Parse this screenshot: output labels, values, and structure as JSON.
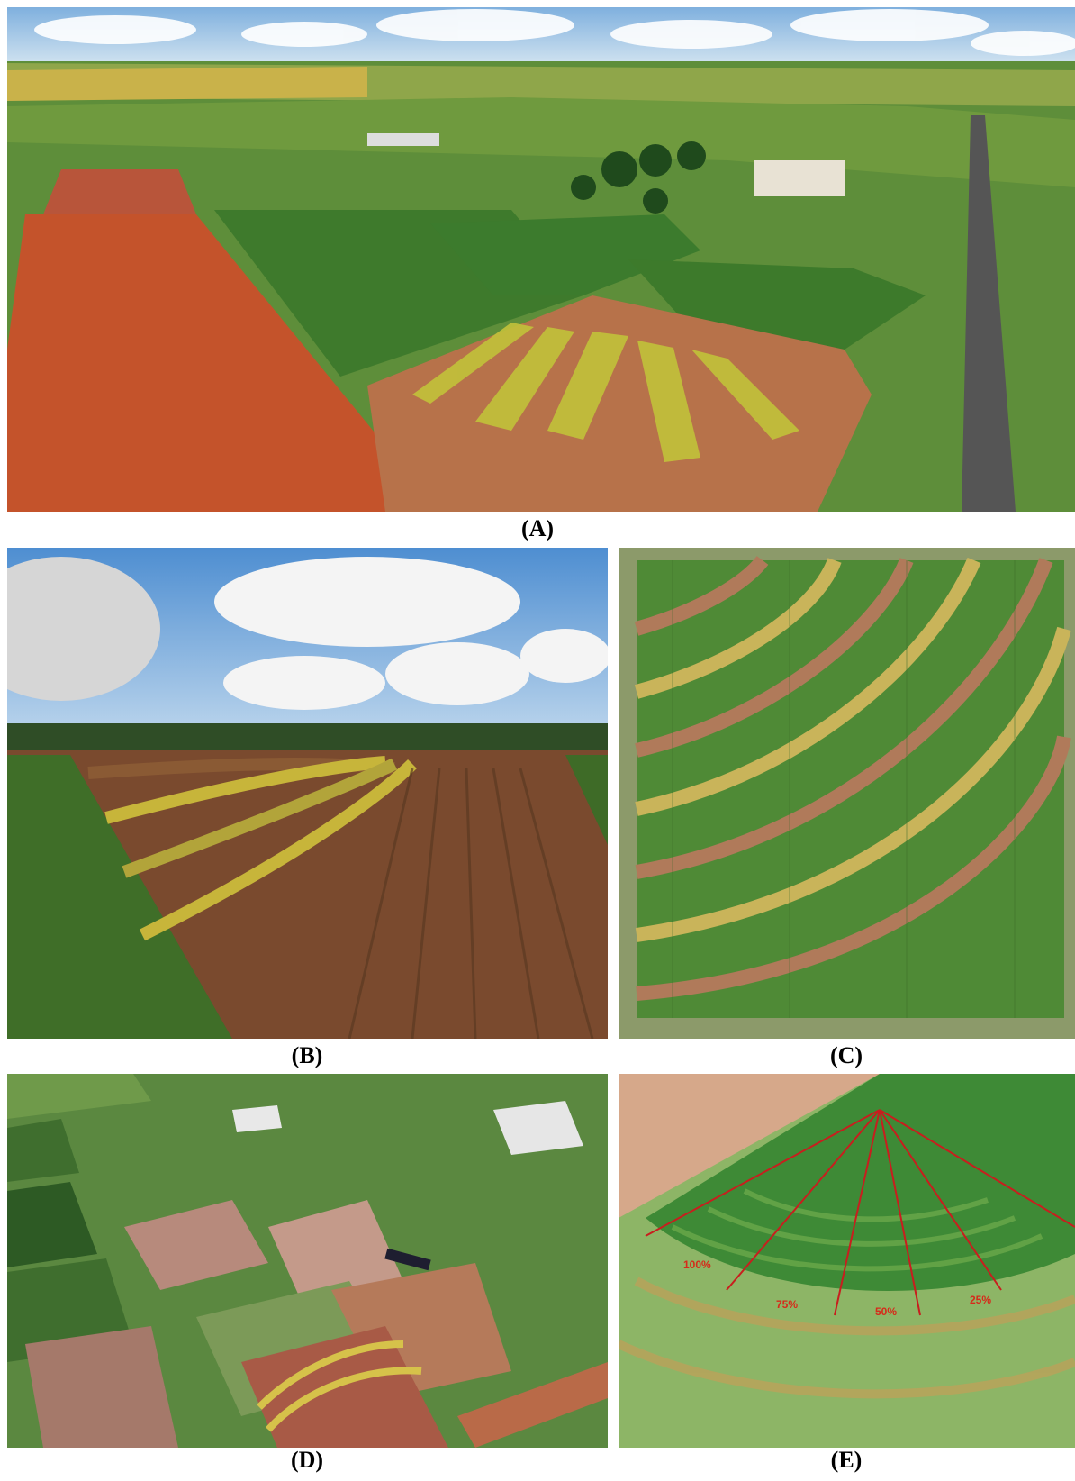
{
  "figure": {
    "panels": [
      {
        "id": "A",
        "label": "(A)",
        "content": "aerial view of experimental farm with radial irrigation plot"
      },
      {
        "id": "B",
        "label": "(B)",
        "content": "ground-level view of curved crop rows"
      },
      {
        "id": "C",
        "label": "(C)",
        "content": "overhead view of concentric crop strips"
      },
      {
        "id": "D",
        "label": "(D)",
        "content": "oblique aerial view of research station plots"
      },
      {
        "id": "E",
        "label": "(E)",
        "content": "center-pivot sector with irrigation percentages"
      }
    ],
    "irrigation_levels": [
      "100%",
      "75%",
      "50%",
      "25%"
    ],
    "colors": {
      "soil": "#b54a2a",
      "crop_green": "#3f7a2c",
      "crop_yellow": "#c9c23a",
      "sky": "#9cc3e6",
      "sector_line": "#c81e1e"
    }
  }
}
